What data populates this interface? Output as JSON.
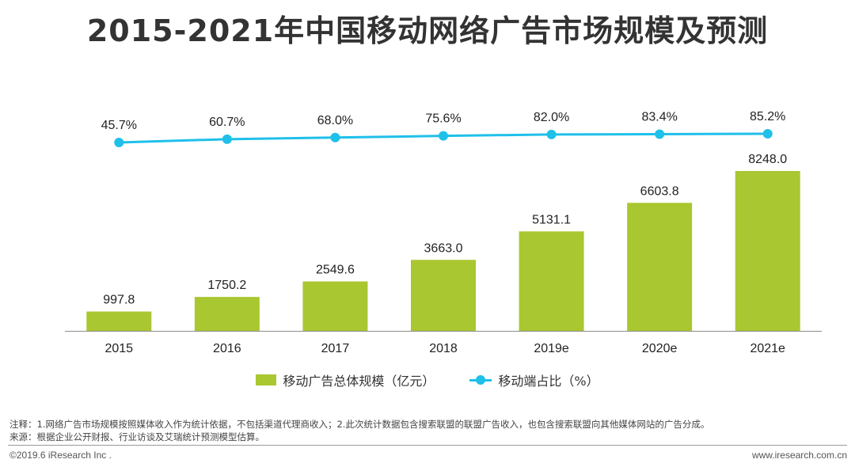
{
  "title": "2015-2021年中国移动网络广告市场规模及预测",
  "chart_data": {
    "type": "bar",
    "categories": [
      "2015",
      "2016",
      "2017",
      "2018",
      "2019e",
      "2020e",
      "2021e"
    ],
    "series": [
      {
        "name": "移动广告总体规模（亿元）",
        "type": "bar",
        "values": [
          997.8,
          1750.2,
          2549.6,
          3663.0,
          5131.1,
          6603.8,
          8248.0
        ],
        "labels": [
          "997.8",
          "1750.2",
          "2549.6",
          "3663.0",
          "5131.1",
          "6603.8",
          "8248.0"
        ],
        "color": "#a9c730"
      },
      {
        "name": "移动端占比（%）",
        "type": "line",
        "values": [
          45.7,
          60.7,
          68.0,
          75.6,
          82.0,
          83.4,
          85.2
        ],
        "labels": [
          "45.7%",
          "60.7%",
          "68.0%",
          "75.6%",
          "82.0%",
          "83.4%",
          "85.2%"
        ],
        "color": "#1fc0ea"
      }
    ],
    "legend_position": "bottom"
  },
  "footnote": {
    "note": "注释：1.网络广告市场规模按照媒体收入作为统计依据，不包括渠道代理商收入；2.此次统计数据包含搜索联盟的联盟广告收入，也包含搜索联盟向其他媒体网站的广告分成。",
    "source": "来源：根据企业公开财报、行业访谈及艾瑞统计预测模型估算。"
  },
  "footer": {
    "copyright": "©2019.6 iResearch Inc .",
    "website": "www.iresearch.com.cn"
  }
}
